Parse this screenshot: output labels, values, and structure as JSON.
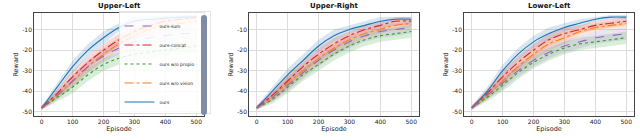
{
  "chart_data": [
    {
      "type": "line",
      "title": "Upper-Left",
      "xlabel": "Episode",
      "ylabel": "Reward",
      "x": [
        0,
        50,
        100,
        150,
        200,
        250,
        300,
        350,
        400,
        450,
        500
      ],
      "xlim": [
        -25,
        525
      ],
      "ylim": [
        -52,
        -2
      ],
      "xticks": [
        0,
        100,
        200,
        300,
        400,
        500
      ],
      "yticks": [
        -50,
        -40,
        -30,
        -20,
        -10
      ],
      "grid": true,
      "legend": "lower right",
      "series": [
        {
          "name": "ours",
          "color": "#1f77b4",
          "line_style": "solid",
          "values": [
            -48,
            -38,
            -28,
            -20,
            -14,
            -9,
            -6,
            -5,
            -4.5,
            -4,
            -4
          ],
          "std": [
            1,
            2,
            3,
            3,
            3,
            2,
            2,
            1.5,
            1,
            1,
            1
          ]
        },
        {
          "name": "ours w/o vision",
          "color": "#ff7f0e",
          "line_style": "dashdot",
          "values": [
            -48,
            -42,
            -35,
            -28,
            -22,
            -17,
            -13,
            -10,
            -8,
            -7,
            -6
          ],
          "std": [
            1,
            2,
            3,
            3,
            3,
            3,
            2,
            2,
            2,
            2,
            2
          ]
        },
        {
          "name": "ours w/o propio",
          "color": "#2ca02c",
          "line_style": "dot",
          "values": [
            -48,
            -43,
            -38,
            -32,
            -27,
            -24,
            -22,
            -21,
            -20,
            -19,
            -18
          ],
          "std": [
            1,
            2,
            3,
            3,
            3,
            3,
            3,
            3,
            3,
            3,
            3
          ]
        },
        {
          "name": "ours-concat",
          "color": "#d62728",
          "line_style": "dashdot",
          "values": [
            -48,
            -41,
            -33,
            -26,
            -20,
            -15,
            -11,
            -8,
            -6,
            -5,
            -4
          ],
          "std": [
            1,
            2,
            3,
            3,
            3,
            3,
            2,
            2,
            2,
            1,
            1
          ]
        },
        {
          "name": "ours-sum",
          "color": "#9467bd",
          "line_style": "dash",
          "values": [
            -48,
            -42,
            -35,
            -28,
            -23,
            -19,
            -16,
            -14,
            -13,
            -12,
            -12
          ],
          "std": [
            1,
            2,
            3,
            3,
            3,
            3,
            3,
            3,
            3,
            3,
            3
          ]
        }
      ]
    },
    {
      "type": "line",
      "title": "Upper-Right",
      "xlabel": "Episode",
      "ylabel": "Reward",
      "x": [
        0,
        50,
        100,
        150,
        200,
        250,
        300,
        350,
        400,
        450,
        500
      ],
      "xlim": [
        -25,
        525
      ],
      "ylim": [
        -52,
        -2
      ],
      "xticks": [
        0,
        100,
        200,
        300,
        400,
        500
      ],
      "yticks": [
        -50,
        -40,
        -30,
        -20,
        -10
      ],
      "grid": true,
      "series": [
        {
          "name": "ours",
          "color": "#1f77b4",
          "line_style": "solid",
          "values": [
            -48,
            -40,
            -32,
            -25,
            -18,
            -13,
            -10,
            -8,
            -6,
            -5,
            -5
          ],
          "std": [
            1,
            2,
            3,
            3,
            3,
            3,
            2,
            2,
            2,
            1,
            1
          ]
        },
        {
          "name": "ours w/o vision",
          "color": "#ff7f0e",
          "line_style": "dashdot",
          "values": [
            -48,
            -43,
            -36,
            -30,
            -24,
            -19,
            -15,
            -12,
            -10,
            -8,
            -7
          ],
          "std": [
            1,
            2,
            3,
            3,
            3,
            3,
            3,
            2,
            2,
            2,
            2
          ]
        },
        {
          "name": "ours w/o propio",
          "color": "#2ca02c",
          "line_style": "dot",
          "values": [
            -48,
            -44,
            -38,
            -32,
            -27,
            -22,
            -18,
            -15,
            -13,
            -12,
            -11
          ],
          "std": [
            1,
            2,
            3,
            3,
            3,
            3,
            3,
            3,
            3,
            3,
            3
          ]
        },
        {
          "name": "ours-concat",
          "color": "#d62728",
          "line_style": "dashdot",
          "values": [
            -48,
            -42,
            -35,
            -28,
            -22,
            -17,
            -13,
            -10,
            -8,
            -6,
            -6
          ],
          "std": [
            1,
            2,
            3,
            3,
            3,
            3,
            2,
            2,
            2,
            2,
            2
          ]
        },
        {
          "name": "ours-sum",
          "color": "#9467bd",
          "line_style": "dash",
          "values": [
            -48,
            -43,
            -37,
            -31,
            -25,
            -20,
            -16,
            -13,
            -11,
            -10,
            -9
          ],
          "std": [
            1,
            2,
            3,
            3,
            3,
            3,
            3,
            3,
            3,
            3,
            3
          ]
        }
      ]
    },
    {
      "type": "line",
      "title": "Lower-Left",
      "xlabel": "Episode",
      "ylabel": "Reward",
      "x": [
        0,
        50,
        100,
        150,
        200,
        250,
        300,
        350,
        400,
        450,
        500
      ],
      "xlim": [
        -25,
        525
      ],
      "ylim": [
        -52,
        -2
      ],
      "xticks": [
        0,
        100,
        200,
        300,
        400,
        500
      ],
      "yticks": [
        -50,
        -40,
        -30,
        -20,
        -10
      ],
      "grid": true,
      "series": [
        {
          "name": "ours",
          "color": "#1f77b4",
          "line_style": "solid",
          "values": [
            -48,
            -40,
            -30,
            -22,
            -16,
            -12,
            -9,
            -7,
            -5,
            -4,
            -4
          ],
          "std": [
            1,
            2,
            3,
            3,
            3,
            3,
            2,
            2,
            1,
            1,
            1
          ]
        },
        {
          "name": "ours w/o vision",
          "color": "#ff7f0e",
          "line_style": "dashdot",
          "values": [
            -48,
            -42,
            -35,
            -28,
            -22,
            -17,
            -14,
            -11,
            -9,
            -8,
            -7
          ],
          "std": [
            1,
            2,
            3,
            3,
            3,
            3,
            3,
            2,
            2,
            2,
            2
          ]
        },
        {
          "name": "ours w/o propio",
          "color": "#2ca02c",
          "line_style": "dot",
          "values": [
            -48,
            -43,
            -37,
            -31,
            -26,
            -22,
            -19,
            -17,
            -16,
            -15,
            -14
          ],
          "std": [
            1,
            2,
            3,
            3,
            3,
            3,
            3,
            3,
            3,
            3,
            3
          ]
        },
        {
          "name": "ours-concat",
          "color": "#d62728",
          "line_style": "dashdot",
          "values": [
            -48,
            -41,
            -33,
            -26,
            -20,
            -15,
            -12,
            -10,
            -8,
            -7,
            -6
          ],
          "std": [
            1,
            2,
            3,
            3,
            3,
            3,
            3,
            2,
            2,
            2,
            2
          ]
        },
        {
          "name": "ours-sum",
          "color": "#9467bd",
          "line_style": "dash",
          "values": [
            -48,
            -42,
            -36,
            -30,
            -25,
            -21,
            -18,
            -16,
            -14,
            -13,
            -12
          ],
          "std": [
            1,
            2,
            3,
            3,
            3,
            3,
            3,
            3,
            3,
            3,
            3
          ]
        }
      ]
    }
  ]
}
